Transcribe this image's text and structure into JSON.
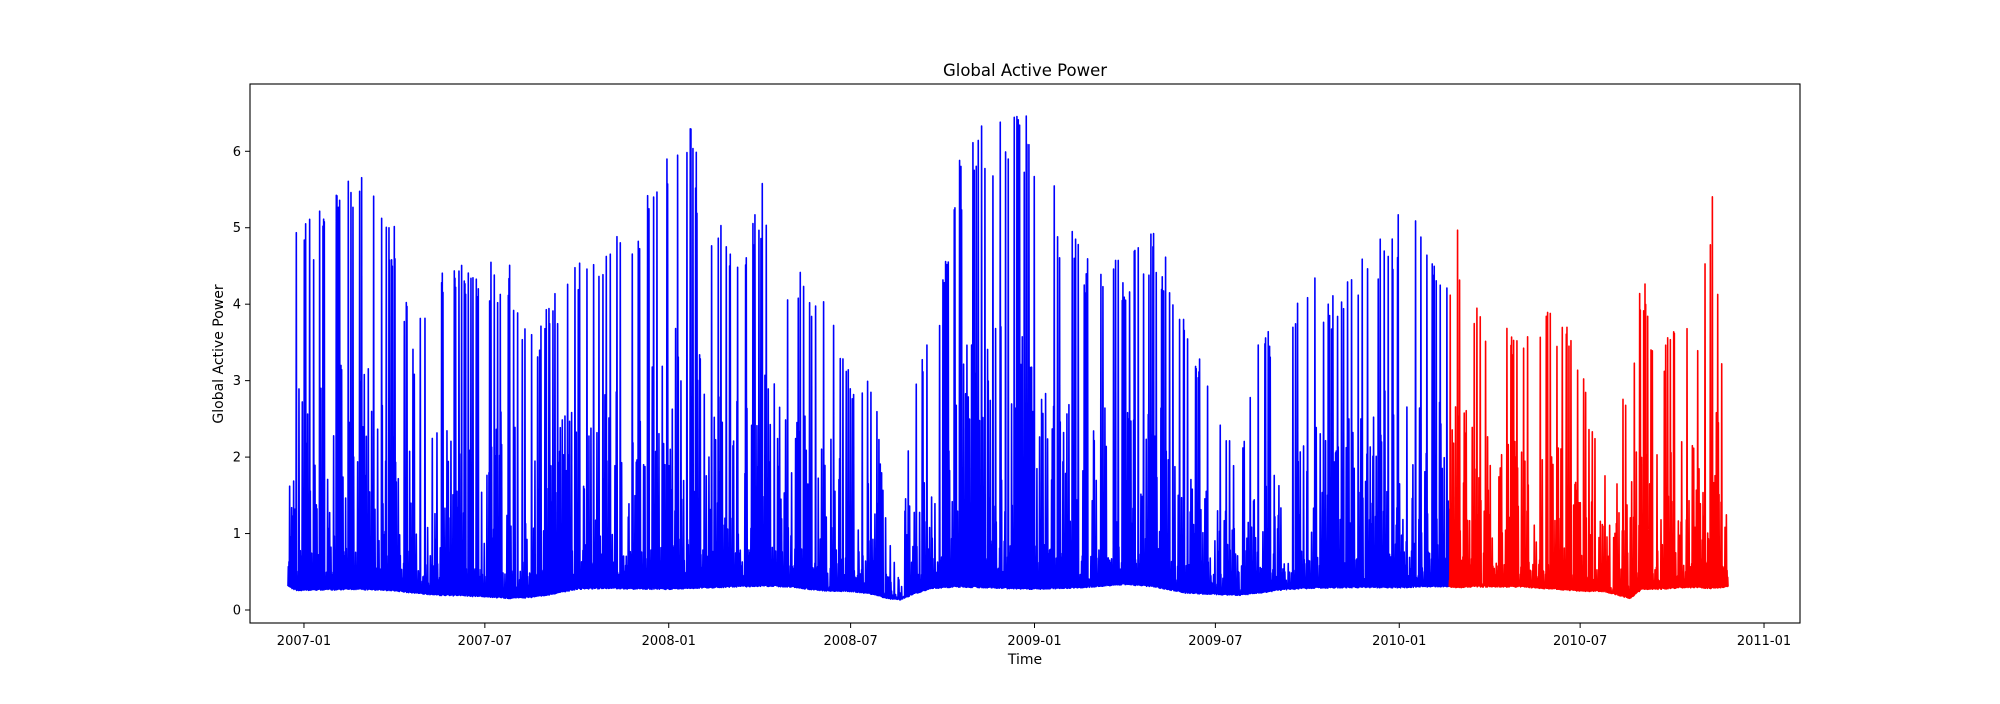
{
  "chart_data": {
    "type": "line",
    "title": "Global Active Power",
    "xlabel": "Time",
    "ylabel": "Global Active Power",
    "xlim": [
      "2006-11-08",
      "2011-02-06"
    ],
    "ylim": [
      -0.17,
      6.88
    ],
    "x_ticks": [
      "2007-01",
      "2007-07",
      "2008-01",
      "2008-07",
      "2009-01",
      "2009-07",
      "2010-01",
      "2010-07",
      "2011-01"
    ],
    "y_ticks": [
      "0",
      "1",
      "2",
      "3",
      "4",
      "5",
      "6"
    ],
    "grid": false,
    "legend": "none",
    "series": [
      {
        "color": "#0000ff",
        "x_range": [
          "2006-12-16",
          "2010-02-20"
        ],
        "envelope": {
          "x": [
            "2006-12-16",
            "2006-12-25",
            "2007-01-10",
            "2007-01-31",
            "2007-02-15",
            "2007-03-10",
            "2007-04-01",
            "2007-04-20",
            "2007-05-15",
            "2007-06-10",
            "2007-07-01",
            "2007-07-25",
            "2007-08-15",
            "2007-09-05",
            "2007-10-01",
            "2007-11-01",
            "2007-12-01",
            "2008-01-01",
            "2008-01-20",
            "2008-02-15",
            "2008-03-10",
            "2008-04-05",
            "2008-05-01",
            "2008-06-01",
            "2008-07-01",
            "2008-07-25",
            "2008-08-05",
            "2008-08-20",
            "2008-09-01",
            "2008-09-20",
            "2008-10-15",
            "2008-11-10",
            "2008-12-01",
            "2009-01-01",
            "2009-02-01",
            "2009-03-01",
            "2009-04-01",
            "2009-05-01",
            "2009-06-01",
            "2009-07-01",
            "2009-07-25",
            "2009-08-15",
            "2009-09-05",
            "2009-10-01",
            "2009-11-01",
            "2009-12-01",
            "2010-01-01",
            "2010-01-25",
            "2010-02-20"
          ],
          "high": [
            4.2,
            5.6,
            5.2,
            6.1,
            5.8,
            5.7,
            5.2,
            3.5,
            4.7,
            4.5,
            4.6,
            4.6,
            3.7,
            4.1,
            4.7,
            5.1,
            5.0,
            6.5,
            6.5,
            5.2,
            4.9,
            5.7,
            4.5,
            4.3,
            3.1,
            3.0,
            1.25,
            0.3,
            3.1,
            3.6,
            5.8,
            6.6,
            6.5,
            6.5,
            5.1,
            4.6,
            4.6,
            5.1,
            3.9,
            2.8,
            1.9,
            3.7,
            3.6,
            4.5,
            4.2,
            4.7,
            5.3,
            5.3,
            4.5
          ],
          "low": [
            0.3,
            0.25,
            0.26,
            0.26,
            0.27,
            0.26,
            0.25,
            0.22,
            0.19,
            0.18,
            0.17,
            0.15,
            0.16,
            0.2,
            0.27,
            0.28,
            0.27,
            0.27,
            0.28,
            0.29,
            0.3,
            0.31,
            0.3,
            0.25,
            0.24,
            0.2,
            0.15,
            0.13,
            0.2,
            0.28,
            0.3,
            0.29,
            0.28,
            0.27,
            0.28,
            0.3,
            0.33,
            0.3,
            0.22,
            0.2,
            0.19,
            0.22,
            0.26,
            0.28,
            0.29,
            0.29,
            0.29,
            0.3,
            0.3
          ]
        }
      },
      {
        "color": "#ff0000",
        "x_range": [
          "2010-02-20",
          "2010-11-26"
        ],
        "envelope": {
          "x": [
            "2010-02-20",
            "2010-03-01",
            "2010-03-20",
            "2010-04-10",
            "2010-05-01",
            "2010-05-25",
            "2010-06-15",
            "2010-07-05",
            "2010-07-25",
            "2010-08-05",
            "2010-08-20",
            "2010-09-01",
            "2010-09-20",
            "2010-10-10",
            "2010-10-25",
            "2010-11-10",
            "2010-11-26"
          ],
          "high": [
            4.2,
            5.1,
            4.0,
            3.9,
            3.8,
            3.9,
            3.9,
            3.0,
            1.8,
            3.2,
            2.8,
            4.5,
            3.3,
            4.1,
            3.7,
            5.6,
            2.3
          ],
          "low": [
            0.3,
            0.29,
            0.3,
            0.3,
            0.3,
            0.28,
            0.26,
            0.24,
            0.24,
            0.2,
            0.15,
            0.27,
            0.27,
            0.29,
            0.29,
            0.28,
            0.3
          ]
        }
      }
    ]
  }
}
